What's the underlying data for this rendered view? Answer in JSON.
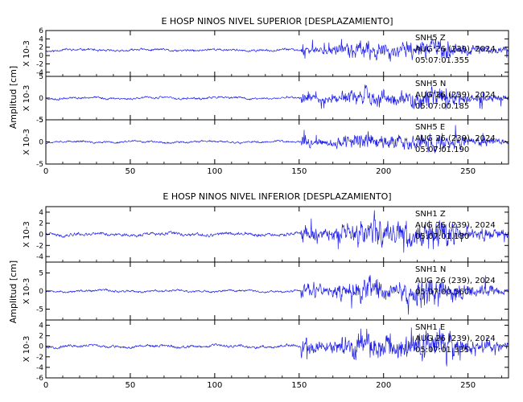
{
  "colors": {
    "trace": "#1f1fe6",
    "axis": "#000000",
    "background": "#ffffff"
  },
  "chart_data": [
    {
      "type": "line",
      "title": "E HOSP NINOS NIVEL SUPERIOR [DESPLAZAMIENTO]",
      "ylabel": "Amplitud [cm]",
      "xlim": [
        0,
        274
      ],
      "xticks": [
        "0",
        "50",
        "100",
        "150",
        "200",
        "250"
      ],
      "panels": [
        {
          "unit": "X 10-3",
          "ylim": [
            -5,
            6
          ],
          "yticks": [
            -4,
            -2,
            0,
            2,
            4,
            6
          ],
          "channel": "SNH5   Z",
          "date": "AUG 26 (239), 2024",
          "time": "05:07:01.355",
          "amp_pre": 0.55,
          "amp_post": 2.4,
          "offset": 1.3,
          "seed": 11
        },
        {
          "unit": "X 10-3",
          "ylim": [
            -5,
            5
          ],
          "yticks": [
            -5,
            0,
            5
          ],
          "channel": "SNH5   N",
          "date": "AUG 26 (239), 2024",
          "time": "05:07:00.185",
          "amp_pre": 0.5,
          "amp_post": 2.3,
          "offset": 0.0,
          "seed": 23
        },
        {
          "unit": "X 10-3",
          "ylim": [
            -5,
            5
          ],
          "yticks": [
            -5,
            0,
            5
          ],
          "channel": "SNH5   E",
          "date": "AUG 26 (239), 2024",
          "time": "05:07:01.190",
          "amp_pre": 0.45,
          "amp_post": 2.3,
          "offset": 0.0,
          "seed": 37
        }
      ]
    },
    {
      "type": "line",
      "title": "E HOSP NINOS NIVEL INFERIOR [DESPLAZAMIENTO]",
      "ylabel": "Amplitud [cm]",
      "xlim": [
        0,
        274
      ],
      "xticks": [
        "0",
        "50",
        "100",
        "150",
        "200",
        "250"
      ],
      "panels": [
        {
          "unit": "X 10-3",
          "ylim": [
            -5,
            5
          ],
          "yticks": [
            -4,
            -2,
            0,
            2,
            4
          ],
          "channel": "SNH1   Z",
          "date": "AUG 26 (239), 2024",
          "time": "05:07:01.180",
          "amp_pre": 0.55,
          "amp_post": 2.7,
          "offset": 0.0,
          "seed": 41
        },
        {
          "unit": "X 10-3",
          "ylim": [
            -8,
            8
          ],
          "yticks": [
            -5,
            0,
            5
          ],
          "channel": "SNH1   N",
          "date": "AUG 26 (239), 2024",
          "time": "05:07:00.560",
          "amp_pre": 0.6,
          "amp_post": 3.8,
          "offset": 0.0,
          "seed": 53
        },
        {
          "unit": "X 10-3",
          "ylim": [
            -6,
            5
          ],
          "yticks": [
            -6,
            -4,
            -2,
            0,
            2,
            4
          ],
          "channel": "SNH1   E",
          "date": "AUG 26 (239), 2024",
          "time": "05:07:01.335",
          "amp_pre": 0.5,
          "amp_post": 2.9,
          "offset": 0.0,
          "seed": 67
        }
      ]
    }
  ]
}
